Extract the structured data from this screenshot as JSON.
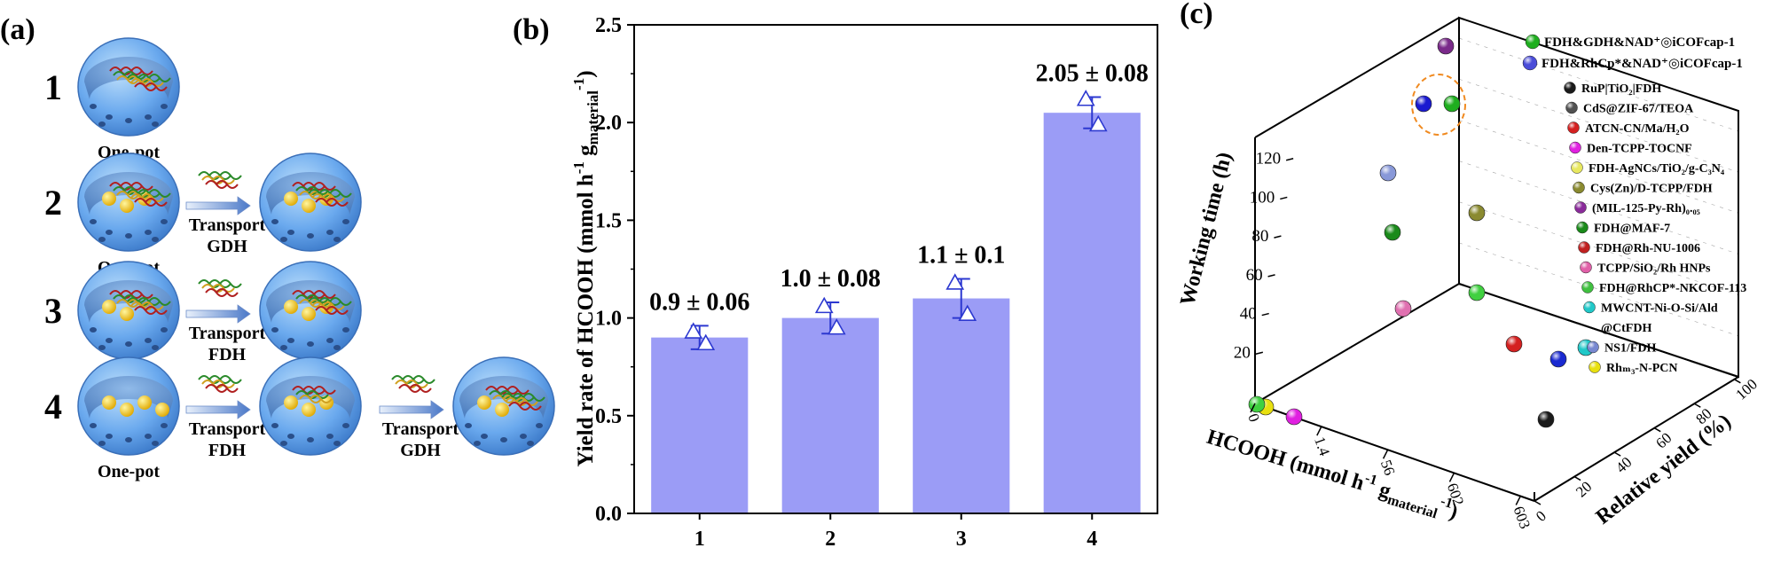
{
  "panels": {
    "a": {
      "label": "(a)",
      "rows": [
        {
          "number": "1",
          "caption": "One-pot",
          "steps": []
        },
        {
          "number": "2",
          "caption": "One-pot",
          "steps": [
            {
              "line1": "Transport",
              "line2": "GDH"
            }
          ]
        },
        {
          "number": "3",
          "caption": "One-pot",
          "steps": [
            {
              "line1": "Transport",
              "line2": "FDH"
            }
          ]
        },
        {
          "number": "4",
          "caption": "One-pot",
          "steps": [
            {
              "line1": "Transport",
              "line2": "FDH"
            },
            {
              "line1": "Transport",
              "line2": "GDH"
            }
          ]
        }
      ]
    },
    "b": {
      "label": "(b)"
    },
    "c": {
      "label": "(c)"
    }
  },
  "chart_data": [
    {
      "type": "bar",
      "panel": "b",
      "categories": [
        "1",
        "2",
        "3",
        "4"
      ],
      "values": [
        0.9,
        1.0,
        1.1,
        2.05
      ],
      "errors": [
        0.06,
        0.08,
        0.1,
        0.08
      ],
      "data_labels": [
        "0.9 ± 0.06",
        "1.0 ± 0.08",
        "1.1 ± 0.1",
        "2.05 ± 0.08"
      ],
      "points": [
        [
          0.93,
          0.87
        ],
        [
          1.06,
          0.95
        ],
        [
          1.18,
          1.02
        ],
        [
          2.12,
          1.99
        ]
      ],
      "ylabel_main": "Yield rate of HCOOH (mmol h",
      "ylabel_sup1": "-1",
      "ylabel_mid": " g",
      "ylabel_sub": "material",
      "ylabel_sup2": "-1",
      "ylabel_end": ")",
      "ylim": [
        0,
        2.5
      ],
      "yticks": [
        "0.0",
        "0.5",
        "1.0",
        "1.5",
        "2.0",
        "2.5"
      ],
      "bar_color": "#9b9cf6",
      "marker_color": "#2c38d0"
    },
    {
      "type": "scatter",
      "panel": "c",
      "zlabel": "Working time (h)",
      "xlabel_main": "HCOOH (mmol h",
      "xlabel_sup1": "-1",
      "xlabel_mid": " g",
      "xlabel_sub": "material",
      "xlabel_sup2": "-1",
      "xlabel_end": ")",
      "ylabel": "Relative yield (%)",
      "zticks": [
        "20",
        "40",
        "60",
        "80",
        "100",
        "120"
      ],
      "xticks": [
        "0",
        "1.4",
        "56",
        "602",
        "603"
      ],
      "yticks": [
        "0",
        "20",
        "40",
        "60",
        "80",
        "100"
      ],
      "legend": [
        {
          "name": "FDH&GDH&NAD⁺◎iCOFcap-1",
          "color": "#1fae1f"
        },
        {
          "name": "FDH&RhCp*&NAD⁺◎iCOFcap-1",
          "color": "#4a4cd8"
        },
        {
          "name": "RuP|TiO₂|FDH",
          "color": "#1a1a1a"
        },
        {
          "name": "CdS@ZIF-67/TEOA",
          "color": "#505050"
        },
        {
          "name": "ATCN-CN/Ma/H₂O",
          "color": "#d42020"
        },
        {
          "name": "Den-TCPP-TOCNF",
          "color": "#e020e0"
        },
        {
          "name": "FDH-AgNCs/TiO₂/g-C₃N₄",
          "color": "#e8e860"
        },
        {
          "name": "Cys(Zn)/D-TCPP/FDH",
          "color": "#8a8a30"
        },
        {
          "name": "(MIL-125-Py-Rh)₀.₀₅",
          "color": "#8a2a9a"
        },
        {
          "name": "FDH@MAF-7",
          "color": "#1a8a1a"
        },
        {
          "name": "FDH@Rh-NU-1006",
          "color": "#c02020"
        },
        {
          "name": "TCPP/SiO₂/Rh HNPs",
          "color": "#e060a8"
        },
        {
          "name": "FDH@RhCP*-NKCOF-113",
          "color": "#40c040"
        },
        {
          "name": "MWCNT-Ni-O-Si/Ald",
          "color": "#20c8c8"
        },
        {
          "name": "@CtFDH",
          "color": ""
        },
        {
          "name": "NS1/FDH",
          "color": "#7888d0"
        },
        {
          "name": "Rhₘ₃-N-PCN",
          "color": "#e8e010"
        }
      ],
      "points": [
        {
          "series": "FDH&GDH&NAD⁺◎iCOFcap-1",
          "z": 113,
          "color": "#1fae1f"
        },
        {
          "series": "FDH&RhCp*&NAD⁺◎iCOFcap-1",
          "z": 113,
          "color": "#1a1ad0"
        },
        {
          "series": "(MIL-125-Py-Rh)₀.₀₅",
          "z": 140,
          "color": "#7a2a8a"
        },
        {
          "series": "NS1/FDH",
          "z": 88,
          "color": "#8898d8"
        },
        {
          "series": "Cys(Zn)/D-TCPP/FDH",
          "z": 72,
          "color": "#8a8a30"
        },
        {
          "series": "FDH@MAF-7",
          "z": 64,
          "color": "#1a8a1a"
        },
        {
          "series": "FDH@RhCP*-NKCOF-113",
          "z": 42,
          "color": "#40d040"
        },
        {
          "series": "TCPP/SiO₂/Rh HNPs",
          "z": 36,
          "color": "#e070b0"
        },
        {
          "series": "ATCN-CN/Ma/H₂O",
          "z": 12,
          "color": "#d42020"
        },
        {
          "series": "MWCNT-Ni-O-Si/Ald @CtFDH",
          "z": 10,
          "color": "#20c8c8"
        },
        {
          "series": "CdS@ZIF-67/TEOA",
          "z": 8,
          "color": "#1a2ad0"
        },
        {
          "series": "RuP|TiO₂|FDH",
          "z": 0,
          "color": "#1a1a1a"
        },
        {
          "series": "Den-TCPP-TOCNF",
          "z": 0,
          "color": "#e020e0"
        },
        {
          "series": "Rhₘ₃-N-PCN",
          "z": 0,
          "color": "#e8e010"
        },
        {
          "series": "FDH-AgNCs/TiO₂/g-C₃N₄",
          "z": 0,
          "color": "#40d040"
        }
      ]
    }
  ]
}
